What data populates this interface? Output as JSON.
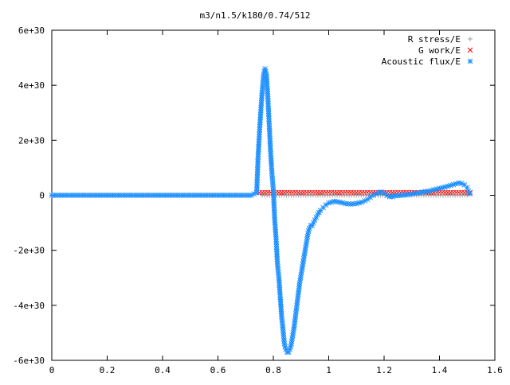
{
  "chart_data": {
    "type": "scatter",
    "title": "m3/n1.5/k180/0.74/512",
    "xlabel": "",
    "ylabel": "",
    "xlim": [
      0,
      1.6
    ],
    "ylim": [
      -6e+30,
      6e+30
    ],
    "x_ticks": [
      {
        "value": 0,
        "label": "0"
      },
      {
        "value": 0.2,
        "label": "0.2"
      },
      {
        "value": 0.4,
        "label": "0.4"
      },
      {
        "value": 0.6,
        "label": "0.6"
      },
      {
        "value": 0.8,
        "label": "0.8"
      },
      {
        "value": 1.0,
        "label": "1"
      },
      {
        "value": 1.2,
        "label": "1.2"
      },
      {
        "value": 1.4,
        "label": "1.4"
      },
      {
        "value": 1.6,
        "label": "1.6"
      }
    ],
    "y_ticks": [
      {
        "value": -6e+30,
        "label": "-6e+30"
      },
      {
        "value": -4e+30,
        "label": "-4e+30"
      },
      {
        "value": -2e+30,
        "label": "-2e+30"
      },
      {
        "value": 0,
        "label": "0"
      },
      {
        "value": 2e+30,
        "label": "2e+30"
      },
      {
        "value": 4e+30,
        "label": "4e+30"
      },
      {
        "value": 6e+30,
        "label": "6e+30"
      }
    ],
    "grid": false,
    "legend_position": "top-right",
    "series": [
      {
        "name": "R stress/E",
        "marker": "plus",
        "color": "#a0a0a0",
        "x": [
          0.76,
          0.9,
          1.1,
          1.3,
          1.5
        ],
        "y": [
          0,
          0,
          0,
          0,
          0
        ]
      },
      {
        "name": "G work/E",
        "marker": "cross",
        "color": "#ff0000",
        "x": [
          0.74,
          0.76,
          0.78,
          0.8,
          0.82,
          0.84,
          0.86,
          0.88,
          0.9,
          0.92,
          0.94,
          0.96,
          0.98,
          1.0,
          1.02,
          1.04,
          1.06,
          1.08,
          1.1,
          1.12,
          1.14,
          1.16,
          1.18,
          1.2,
          1.22,
          1.24,
          1.26,
          1.28,
          1.3,
          1.32,
          1.34,
          1.36,
          1.38,
          1.4,
          1.42,
          1.44,
          1.46,
          1.48,
          1.5,
          1.51
        ],
        "y": [
          1e+29,
          1e+29,
          1e+29,
          1e+29,
          1e+29,
          1e+29,
          1e+29,
          1e+29,
          1e+29,
          1e+29,
          1e+29,
          1e+29,
          1e+29,
          1e+29,
          1e+29,
          1e+29,
          1e+29,
          1e+29,
          1e+29,
          1e+29,
          1e+29,
          1e+29,
          1e+29,
          1e+29,
          1e+29,
          1e+29,
          1e+29,
          1e+29,
          1e+29,
          1e+29,
          1e+29,
          1e+29,
          1e+29,
          1e+29,
          1e+29,
          1e+29,
          1e+29,
          1e+29,
          1e+29,
          1e+29
        ]
      },
      {
        "name": "Acoustic flux/E",
        "marker": "star",
        "color": "#1e90ff",
        "x": [
          0,
          0.02,
          0.04,
          0.06,
          0.08,
          0.1,
          0.12,
          0.14,
          0.16,
          0.18,
          0.2,
          0.22,
          0.24,
          0.26,
          0.28,
          0.3,
          0.32,
          0.34,
          0.36,
          0.38,
          0.4,
          0.42,
          0.44,
          0.46,
          0.48,
          0.5,
          0.52,
          0.54,
          0.56,
          0.58,
          0.6,
          0.62,
          0.64,
          0.66,
          0.68,
          0.7,
          0.72,
          0.74,
          0.745,
          0.75,
          0.755,
          0.76,
          0.765,
          0.77,
          0.775,
          0.78,
          0.785,
          0.79,
          0.795,
          0.8,
          0.805,
          0.81,
          0.815,
          0.82,
          0.825,
          0.83,
          0.835,
          0.84,
          0.845,
          0.85,
          0.855,
          0.86,
          0.865,
          0.87,
          0.875,
          0.88,
          0.885,
          0.89,
          0.895,
          0.9,
          0.905,
          0.91,
          0.915,
          0.92,
          0.925,
          0.93,
          0.935,
          0.94,
          0.945,
          0.95,
          0.96,
          0.97,
          0.98,
          0.99,
          1.0,
          1.02,
          1.04,
          1.06,
          1.08,
          1.1,
          1.12,
          1.14,
          1.16,
          1.18,
          1.19,
          1.2,
          1.21,
          1.22,
          1.23,
          1.24,
          1.26,
          1.28,
          1.3,
          1.32,
          1.34,
          1.36,
          1.38,
          1.4,
          1.42,
          1.44,
          1.46,
          1.47,
          1.48,
          1.49,
          1.5,
          1.505,
          1.51
        ],
        "y": [
          0,
          0,
          0,
          0,
          0,
          0,
          0,
          0,
          0,
          0,
          0,
          0,
          0,
          0,
          0,
          0,
          0,
          0,
          0,
          0,
          0,
          0,
          0,
          0,
          0,
          0,
          0,
          0,
          0,
          0,
          0,
          0,
          0,
          0,
          0,
          0,
          0,
          1e+29,
          1.4e+30,
          2.3e+30,
          3.1e+30,
          3.8e+30,
          4.4e+30,
          4.6e+30,
          4.4e+30,
          3.6e+30,
          2.6e+30,
          1.6e+30,
          8e+29,
          2e+29,
          -9e+29,
          -1.6e+30,
          -2.5e+30,
          -3e+30,
          -3.7e+30,
          -4.4e+30,
          -4.9e+30,
          -5.4e+30,
          -5.6e+30,
          -5.7e+30,
          -5.7e+30,
          -5.6e+30,
          -5.4e+30,
          -5.1e+30,
          -4.8e+30,
          -4.4e+30,
          -4e+30,
          -3.6e+30,
          -3.2e+30,
          -2.9e+30,
          -2.6e+30,
          -2.3e+30,
          -2e+30,
          -1.7e+30,
          -1.4e+30,
          -1.2e+30,
          -1.1e+30,
          -1.1e+30,
          -1e+30,
          -9e+29,
          -7e+29,
          -5.5e+29,
          -4.5e+29,
          -3.5e+29,
          -2.8e+29,
          -2.2e+29,
          -2.5e+29,
          -3e+29,
          -3.2e+29,
          -3e+29,
          -2.5e+29,
          -1.5e+29,
          0.0,
          1e+29,
          1.2e+29,
          8e+28,
          0.0,
          -5e+28,
          -5e+28,
          -2e+28,
          0.0,
          2e+28,
          5e+28,
          8e+28,
          1.2e+29,
          1.5e+29,
          2e+29,
          2.5e+29,
          3e+29,
          3.6e+29,
          4.2e+29,
          4.5e+29,
          4.3e+29,
          3.8e+29,
          2.8e+29,
          1.5e+29,
          5e+28
        ]
      }
    ]
  }
}
